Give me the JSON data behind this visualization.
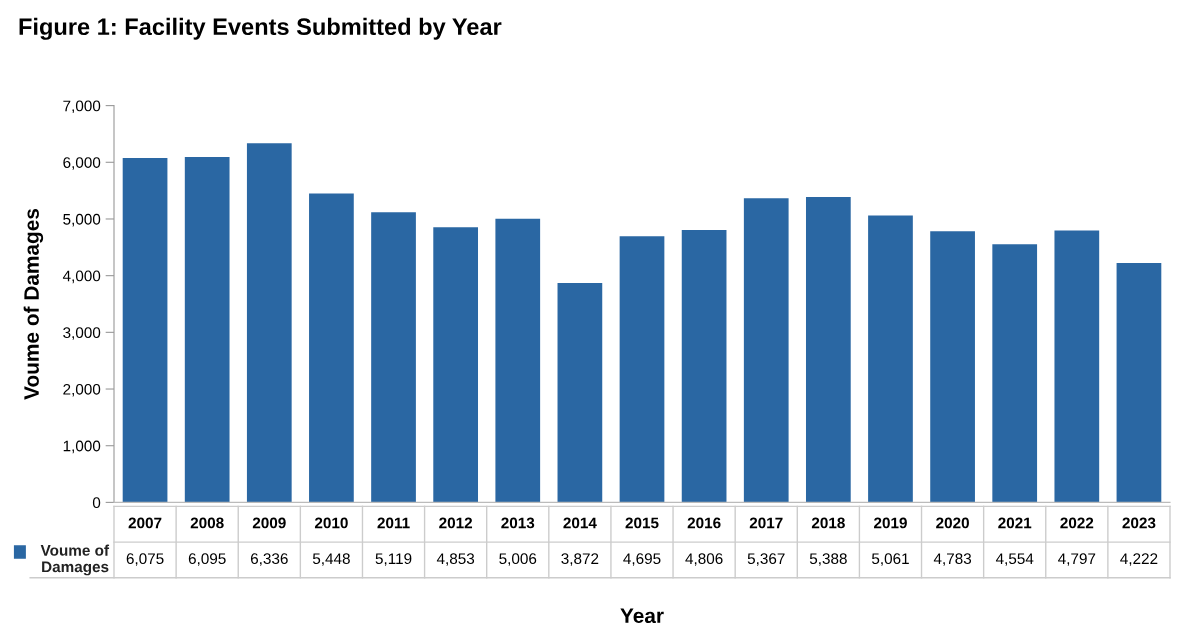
{
  "chart_data": {
    "type": "bar",
    "title": "Figure 1: Facility Events Submitted by Year",
    "xlabel": "Year",
    "ylabel": "Voume of Damages",
    "categories": [
      "2007",
      "2008",
      "2009",
      "2010",
      "2011",
      "2012",
      "2013",
      "2014",
      "2015",
      "2016",
      "2017",
      "2018",
      "2019",
      "2020",
      "2021",
      "2022",
      "2023"
    ],
    "series": [
      {
        "name": "Voume of Damages",
        "color": "#2a67a3",
        "values": [
          6075,
          6095,
          6336,
          5448,
          5119,
          4853,
          5006,
          3872,
          4695,
          4806,
          5367,
          5388,
          5061,
          4783,
          4554,
          4797,
          4222
        ],
        "value_labels": [
          "6,075",
          "6,095",
          "6,336",
          "5,448",
          "5,119",
          "4,853",
          "5,006",
          "3,872",
          "4,695",
          "4,806",
          "5,367",
          "5,388",
          "5,061",
          "4,783",
          "4,554",
          "4,797",
          "4,222"
        ]
      }
    ],
    "ylim": [
      0,
      7000
    ],
    "yticks": [
      0,
      {
        "value": 1000,
        "label": "1,000"
      },
      {
        "value": 2000,
        "label": "2,000"
      },
      {
        "value": 3000,
        "label": "3,000"
      },
      {
        "value": 4000,
        "label": "4,000"
      },
      {
        "value": 5000,
        "label": "5,000"
      },
      {
        "value": 6000,
        "label": "6,000"
      },
      {
        "value": 7000,
        "label": "7,000"
      }
    ],
    "grid": false,
    "legend": "bottom"
  }
}
